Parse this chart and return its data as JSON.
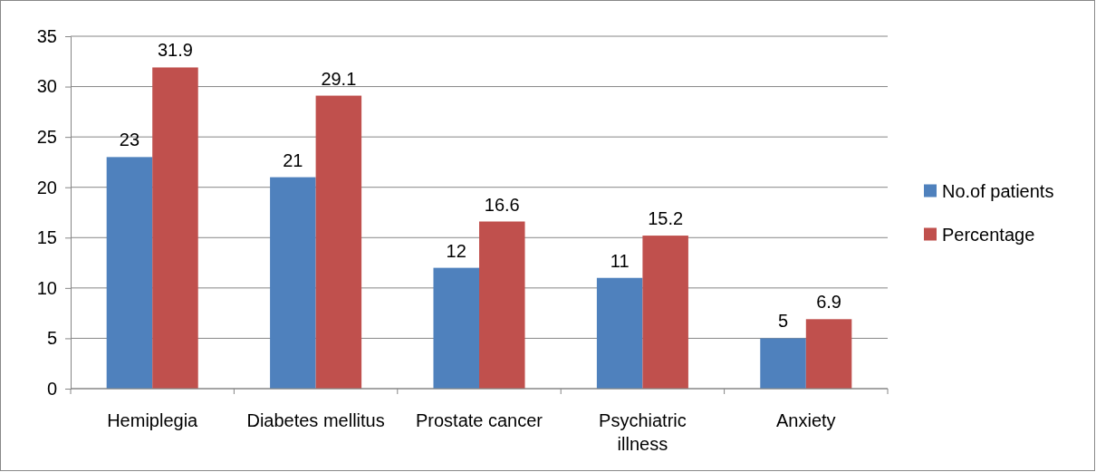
{
  "chart_data": {
    "type": "bar",
    "categories": [
      "Hemiplegia",
      "Diabetes mellitus",
      "Prostate cancer",
      "Psychiatric illness",
      "Anxiety"
    ],
    "series": [
      {
        "name": "No.of patients",
        "color": "#4f81bd",
        "values": [
          23,
          21,
          12,
          11,
          5
        ]
      },
      {
        "name": "Percentage",
        "color": "#c0504d",
        "values": [
          31.9,
          29.1,
          16.6,
          15.2,
          6.9
        ]
      }
    ],
    "ylim": [
      0,
      35
    ],
    "yticks": [
      0,
      5,
      10,
      15,
      20,
      25,
      30,
      35
    ],
    "grid": "y",
    "legend": "right",
    "data_labels": true
  }
}
